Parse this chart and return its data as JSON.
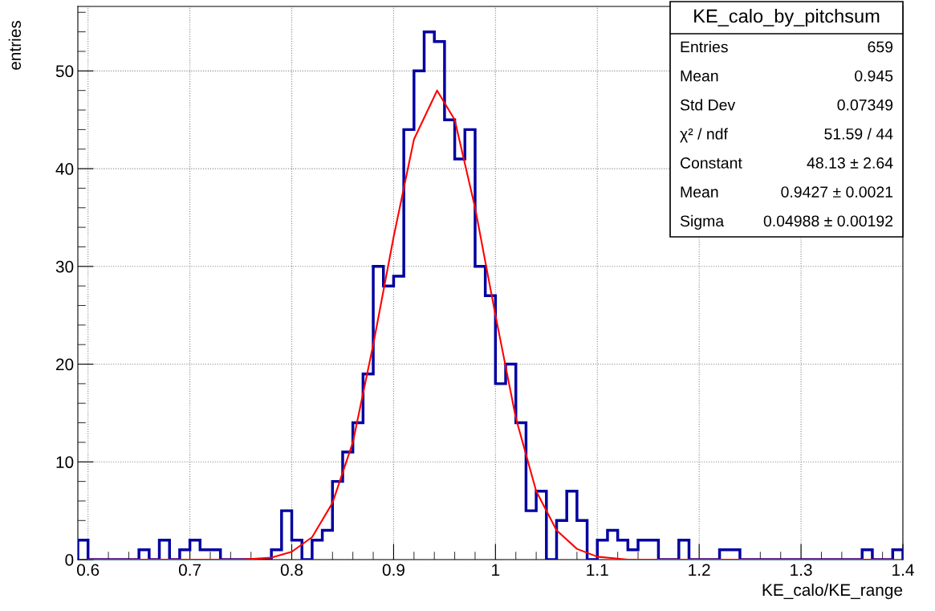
{
  "chart_data": {
    "type": "histogram",
    "title": "KE_calo_by_pitchsum",
    "xlabel": "KE_calo/KE_range",
    "ylabel": "entries",
    "xlim": [
      0.59,
      1.4
    ],
    "ylim": [
      0,
      56.6
    ],
    "xticks": [
      0.6,
      0.7,
      0.8,
      0.9,
      1,
      1.1,
      1.2,
      1.3,
      1.4
    ],
    "yticks": [
      0,
      10,
      20,
      30,
      40,
      50
    ],
    "grid": true,
    "annotations": [
      "Entries",
      "659",
      "Mean",
      "0.945",
      "Std Dev",
      "0.07349",
      "χ² / ndf",
      "51.59 / 44",
      "Constant",
      "48.13 ± 2.64",
      "Mean",
      "0.9427 ± 0.0021",
      "Sigma",
      "0.04988 ± 0.00192"
    ],
    "series": [
      {
        "color": "#0000a0",
        "bins": [
          0.59,
          0.6,
          0.61,
          0.62,
          0.63,
          0.64,
          0.65,
          0.66,
          0.67,
          0.68,
          0.69,
          0.7,
          0.71,
          0.72,
          0.73,
          0.74,
          0.75,
          0.76,
          0.77,
          0.78,
          0.79,
          0.8,
          0.81,
          0.82,
          0.83,
          0.84,
          0.85,
          0.86,
          0.87,
          0.88,
          0.89,
          0.9,
          0.91,
          0.92,
          0.93,
          0.94,
          0.95,
          0.96,
          0.97,
          0.98,
          0.99,
          1.0,
          1.01,
          1.02,
          1.03,
          1.04,
          1.05,
          1.06,
          1.07,
          1.08,
          1.09,
          1.1,
          1.11,
          1.12,
          1.13,
          1.14,
          1.15,
          1.16,
          1.17,
          1.18,
          1.19,
          1.2,
          1.21,
          1.22,
          1.23,
          1.24,
          1.25,
          1.26,
          1.27,
          1.28,
          1.29,
          1.3,
          1.31,
          1.32,
          1.33,
          1.34,
          1.35,
          1.36,
          1.37,
          1.38,
          1.39,
          1.4
        ],
        "values": [
          2,
          0,
          0,
          0,
          0,
          0,
          1,
          0,
          2,
          0,
          1,
          2,
          1,
          1,
          0,
          0,
          0,
          0,
          0,
          1,
          5,
          2,
          0,
          2,
          3,
          8,
          11,
          14,
          19,
          30,
          28,
          29,
          44,
          50,
          54,
          53,
          45,
          41,
          44,
          30,
          27,
          18,
          20,
          14,
          5,
          7,
          0,
          4,
          7,
          4,
          0,
          2,
          3,
          2,
          1,
          2,
          2,
          0,
          0,
          2,
          0,
          0,
          0,
          1,
          1,
          0,
          0,
          0,
          0,
          0,
          0,
          0,
          0,
          0,
          0,
          0,
          0,
          1,
          0,
          0,
          1
        ]
      },
      {
        "type": "line",
        "color": "#ff0000",
        "x": [
          0.6,
          0.75,
          0.78,
          0.8,
          0.82,
          0.84,
          0.86,
          0.88,
          0.9,
          0.92,
          0.9427,
          0.96,
          0.98,
          1.0,
          1.02,
          1.04,
          1.06,
          1.08,
          1.1,
          1.13,
          1.39
        ],
        "values": [
          0,
          0,
          0.2,
          0.8,
          2.3,
          5.8,
          12,
          22,
          33,
          43,
          48,
          45,
          36,
          25,
          14.5,
          7,
          3,
          1.1,
          0.3,
          0,
          0
        ]
      }
    ]
  }
}
